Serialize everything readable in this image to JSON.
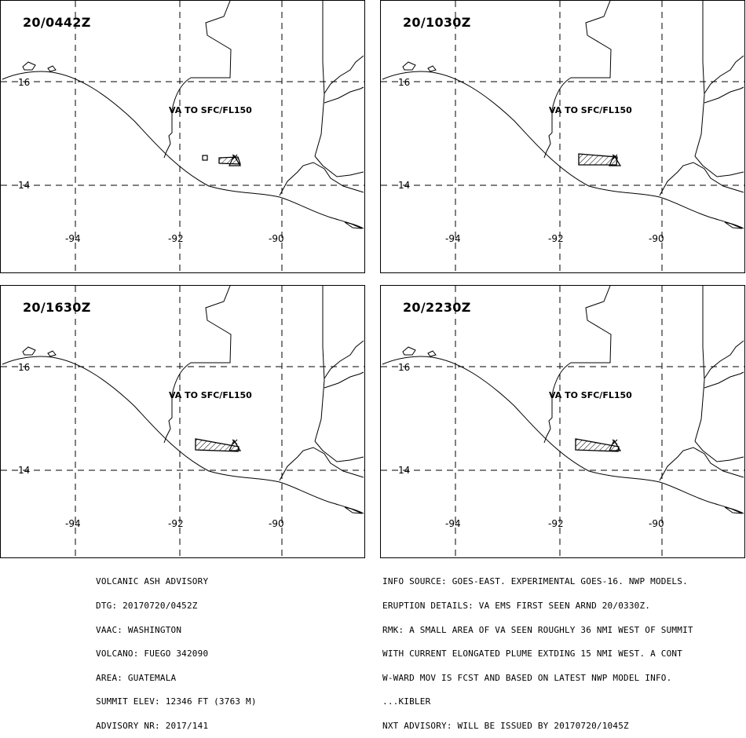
{
  "panels": [
    {
      "title": "20/0442Z",
      "va_label": "VA TO SFC/FL150",
      "plume": "small"
    },
    {
      "title": "20/1030Z",
      "va_label": "VA TO SFC/FL150",
      "plume": "medium"
    },
    {
      "title": "20/1630Z",
      "va_label": "VA TO SFC/FL150",
      "plume": "large"
    },
    {
      "title": "20/2230Z",
      "va_label": "VA TO SFC/FL150",
      "plume": "large"
    }
  ],
  "lat_labels": [
    "16",
    "14"
  ],
  "lon_labels": [
    "-94",
    "-92",
    "-90"
  ],
  "advisory_left": [
    "VOLCANIC ASH ADVISORY",
    "DTG: 20170720/0452Z",
    "VAAC: WASHINGTON",
    "VOLCANO: FUEGO 342090",
    "AREA: GUATEMALA",
    "SUMMIT ELEV: 12346 FT (3763 M)",
    "ADVISORY NR: 2017/141"
  ],
  "advisory_right": [
    "INFO SOURCE: GOES-EAST. EXPERIMENTAL GOES-16. NWP MODELS.",
    "ERUPTION DETAILS: VA EMS FIRST SEEN ARND 20/0330Z.",
    "RMK: A SMALL AREA OF VA SEEN ROUGHLY 36 NMI WEST OF SUMMIT",
    "WITH CURRENT ELONGATED PLUME EXTDING 15 NMI WEST. A CONT",
    "W-WARD MOV IS FCST AND BASED ON LATEST NWP MODEL INFO.",
    "...KIBLER",
    "NXT ADVISORY: WILL BE ISSUED BY 20170720/1045Z"
  ]
}
